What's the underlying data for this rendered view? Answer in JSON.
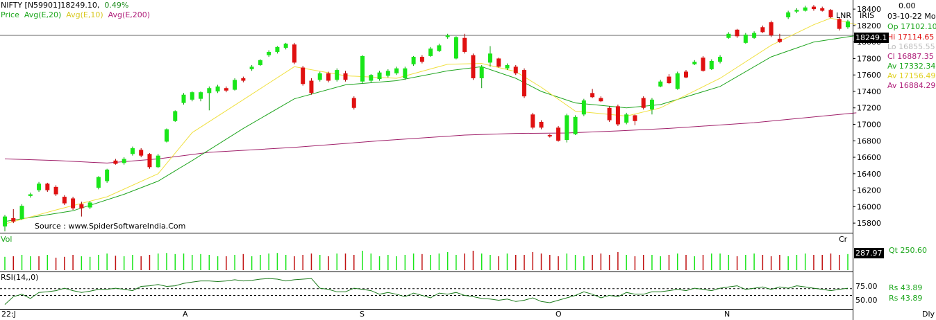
{
  "header": {
    "symbol": "NIFTY [N59901]",
    "last": "18249.10,",
    "change_pct": "0.49%",
    "legend_price": "Price",
    "legend_avg20": "Avg(E,20)",
    "legend_avg10": "Avg(E,10)",
    "legend_avg200": "Avg(E,200)",
    "source": "Source : www.SpiderSoftwareIndia.Com",
    "lnr": "LNR",
    "iris": "IRIS"
  },
  "info_panel": {
    "zero": "0.00",
    "date": "03-10-22 Mo",
    "op": "Op 17102.10",
    "hi": "Hi  17114.65",
    "lo": "Lo  16855.55",
    "cl": "Cl  16887.35",
    "av1": "Av  17332.34",
    "av2": "Av  17156.49",
    "av3": "Av  16884.29",
    "price_box": "18249.1"
  },
  "volume_panel": {
    "label": "Vol",
    "cr": "Cr",
    "value_box": "287.97",
    "qt": "Qt     250.60"
  },
  "rsi_panel": {
    "label": "RSI(14,,0)",
    "tick_75": "75.00",
    "tick_50": "50.00",
    "rs1": "Rs       43.89",
    "rs2": "Rs       43.89"
  },
  "colors": {
    "up": "#19e619",
    "down": "#e01010",
    "avg20": "#1fa51f",
    "avg10": "#f0e040",
    "avg200": "#a0206a",
    "hline": "#a0a0a0",
    "rsi": "#1a7a1a"
  },
  "chart_data": {
    "type": "candlestick",
    "y_ticks": [
      15800,
      16000,
      16200,
      16400,
      16600,
      16800,
      17000,
      17200,
      17400,
      17600,
      17800,
      18000,
      18200,
      18400
    ],
    "ylim": [
      15700,
      18460
    ],
    "x_month_labels": [
      "22:J",
      "A",
      "S",
      "O",
      "N",
      "Dly"
    ],
    "horizontal_line": 18080,
    "candles": [
      {
        "o": 15760,
        "c": 15880,
        "h": 15900,
        "l": 15700
      },
      {
        "o": 15860,
        "c": 15820,
        "h": 15970,
        "l": 15800
      },
      {
        "o": 15850,
        "c": 16010,
        "h": 16030,
        "l": 15840
      },
      {
        "o": 16130,
        "c": 16150,
        "h": 16170,
        "l": 16110
      },
      {
        "o": 16200,
        "c": 16280,
        "h": 16300,
        "l": 16180
      },
      {
        "o": 16280,
        "c": 16200,
        "h": 16290,
        "l": 16180
      },
      {
        "o": 16240,
        "c": 16150,
        "h": 16260,
        "l": 16130
      },
      {
        "o": 16120,
        "c": 16040,
        "h": 16140,
        "l": 16020
      },
      {
        "o": 16100,
        "c": 15980,
        "h": 16120,
        "l": 15960
      },
      {
        "o": 16030,
        "c": 15980,
        "h": 16060,
        "l": 15880
      },
      {
        "o": 15990,
        "c": 16050,
        "h": 16070,
        "l": 15970
      },
      {
        "o": 16230,
        "c": 16360,
        "h": 16370,
        "l": 16210
      },
      {
        "o": 16310,
        "c": 16450,
        "h": 16460,
        "l": 16290
      },
      {
        "o": 16560,
        "c": 16520,
        "h": 16580,
        "l": 16510
      },
      {
        "o": 16530,
        "c": 16580,
        "h": 16600,
        "l": 16510
      },
      {
        "o": 16640,
        "c": 16710,
        "h": 16730,
        "l": 16620
      },
      {
        "o": 16690,
        "c": 16620,
        "h": 16710,
        "l": 16600
      },
      {
        "o": 16640,
        "c": 16480,
        "h": 16650,
        "l": 16460
      },
      {
        "o": 16480,
        "c": 16620,
        "h": 16640,
        "l": 16470
      },
      {
        "o": 16790,
        "c": 16940,
        "h": 16950,
        "l": 16780
      },
      {
        "o": 17040,
        "c": 17160,
        "h": 17170,
        "l": 17030
      },
      {
        "o": 17260,
        "c": 17360,
        "h": 17380,
        "l": 17240
      },
      {
        "o": 17300,
        "c": 17390,
        "h": 17400,
        "l": 17280
      },
      {
        "o": 17310,
        "c": 17390,
        "h": 17400,
        "l": 17280
      },
      {
        "o": 17380,
        "c": 17440,
        "h": 17460,
        "l": 17170
      },
      {
        "o": 17400,
        "c": 17460,
        "h": 17480,
        "l": 17380
      },
      {
        "o": 17440,
        "c": 17410,
        "h": 17460,
        "l": 17390
      },
      {
        "o": 17420,
        "c": 17540,
        "h": 17560,
        "l": 17410
      },
      {
        "o": 17560,
        "c": 17530,
        "h": 17580,
        "l": 17510
      },
      {
        "o": 17670,
        "c": 17700,
        "h": 17720,
        "l": 17650
      },
      {
        "o": 17720,
        "c": 17780,
        "h": 17790,
        "l": 17710
      },
      {
        "o": 17840,
        "c": 17880,
        "h": 17900,
        "l": 17820
      },
      {
        "o": 17880,
        "c": 17940,
        "h": 17950,
        "l": 17860
      },
      {
        "o": 17930,
        "c": 17980,
        "h": 17990,
        "l": 17910
      },
      {
        "o": 17970,
        "c": 17750,
        "h": 17990,
        "l": 17730
      },
      {
        "o": 17690,
        "c": 17490,
        "h": 17710,
        "l": 17470
      },
      {
        "o": 17530,
        "c": 17380,
        "h": 17560,
        "l": 17360
      },
      {
        "o": 17540,
        "c": 17620,
        "h": 17640,
        "l": 17520
      },
      {
        "o": 17620,
        "c": 17530,
        "h": 17640,
        "l": 17510
      },
      {
        "o": 17540,
        "c": 17660,
        "h": 17680,
        "l": 17520
      },
      {
        "o": 17620,
        "c": 17540,
        "h": 17650,
        "l": 17520
      },
      {
        "o": 17320,
        "c": 17200,
        "h": 17340,
        "l": 17180
      },
      {
        "o": 17520,
        "c": 17830,
        "h": 17840,
        "l": 17500
      },
      {
        "o": 17530,
        "c": 17600,
        "h": 17610,
        "l": 17510
      },
      {
        "o": 17550,
        "c": 17630,
        "h": 17650,
        "l": 17530
      },
      {
        "o": 17590,
        "c": 17650,
        "h": 17670,
        "l": 17570
      },
      {
        "o": 17620,
        "c": 17680,
        "h": 17700,
        "l": 17600
      },
      {
        "o": 17560,
        "c": 17680,
        "h": 17700,
        "l": 17540
      },
      {
        "o": 17730,
        "c": 17820,
        "h": 17830,
        "l": 17710
      },
      {
        "o": 17820,
        "c": 17760,
        "h": 17840,
        "l": 17740
      },
      {
        "o": 17830,
        "c": 17920,
        "h": 17940,
        "l": 17820
      },
      {
        "o": 17890,
        "c": 17960,
        "h": 17980,
        "l": 17880
      },
      {
        "o": 18060,
        "c": 18080,
        "h": 18100,
        "l": 18040
      },
      {
        "o": 17800,
        "c": 18060,
        "h": 18070,
        "l": 17790
      },
      {
        "o": 18050,
        "c": 17880,
        "h": 18100,
        "l": 17860
      },
      {
        "o": 17840,
        "c": 17560,
        "h": 17860,
        "l": 17540
      },
      {
        "o": 17560,
        "c": 17700,
        "h": 17720,
        "l": 17440
      },
      {
        "o": 17750,
        "c": 17860,
        "h": 17950,
        "l": 17700
      },
      {
        "o": 17800,
        "c": 17700,
        "h": 17810,
        "l": 17690
      },
      {
        "o": 17680,
        "c": 17720,
        "h": 17740,
        "l": 17660
      },
      {
        "o": 17700,
        "c": 17620,
        "h": 17720,
        "l": 17600
      },
      {
        "o": 17660,
        "c": 17340,
        "h": 17680,
        "l": 17320
      },
      {
        "o": 17120,
        "c": 16960,
        "h": 17140,
        "l": 16940
      },
      {
        "o": 17030,
        "c": 16960,
        "h": 17050,
        "l": 16940
      },
      {
        "o": 16870,
        "c": 16860,
        "h": 16880,
        "l": 16840
      },
      {
        "o": 16960,
        "c": 16800,
        "h": 16980,
        "l": 16790
      },
      {
        "o": 16810,
        "c": 17110,
        "h": 17130,
        "l": 16780
      },
      {
        "o": 16880,
        "c": 17090,
        "h": 17110,
        "l": 16870
      },
      {
        "o": 17120,
        "c": 17290,
        "h": 17310,
        "l": 17100
      },
      {
        "o": 17380,
        "c": 17330,
        "h": 17430,
        "l": 17320
      },
      {
        "o": 17320,
        "c": 17280,
        "h": 17340,
        "l": 17270
      },
      {
        "o": 17200,
        "c": 17050,
        "h": 17220,
        "l": 17030
      },
      {
        "o": 17220,
        "c": 17000,
        "h": 17240,
        "l": 16980
      },
      {
        "o": 17020,
        "c": 17120,
        "h": 17140,
        "l": 17000
      },
      {
        "o": 17110,
        "c": 17040,
        "h": 17120,
        "l": 16990
      },
      {
        "o": 17320,
        "c": 17200,
        "h": 17340,
        "l": 17180
      },
      {
        "o": 17180,
        "c": 17300,
        "h": 17320,
        "l": 17120
      },
      {
        "o": 17460,
        "c": 17520,
        "h": 17540,
        "l": 17450
      },
      {
        "o": 17580,
        "c": 17500,
        "h": 17610,
        "l": 17490
      },
      {
        "o": 17430,
        "c": 17620,
        "h": 17640,
        "l": 17420
      },
      {
        "o": 17640,
        "c": 17570,
        "h": 17660,
        "l": 17560
      },
      {
        "o": 17730,
        "c": 17760,
        "h": 17780,
        "l": 17720
      },
      {
        "o": 17810,
        "c": 17650,
        "h": 17830,
        "l": 17640
      },
      {
        "o": 17670,
        "c": 17770,
        "h": 17790,
        "l": 17660
      },
      {
        "o": 17760,
        "c": 17820,
        "h": 17840,
        "l": 17740
      },
      {
        "o": 18050,
        "c": 18100,
        "h": 18120,
        "l": 18040
      },
      {
        "o": 18150,
        "c": 18070,
        "h": 18160,
        "l": 18050
      },
      {
        "o": 17990,
        "c": 18090,
        "h": 18110,
        "l": 17980
      },
      {
        "o": 18050,
        "c": 18110,
        "h": 18130,
        "l": 18040
      },
      {
        "o": 18180,
        "c": 18120,
        "h": 18200,
        "l": 18110
      },
      {
        "o": 18240,
        "c": 18080,
        "h": 18260,
        "l": 18060
      },
      {
        "o": 18040,
        "c": 18000,
        "h": 18100,
        "l": 17990
      },
      {
        "o": 18300,
        "c": 18360,
        "h": 18380,
        "l": 18280
      },
      {
        "o": 18370,
        "c": 18390,
        "h": 18410,
        "l": 18350
      },
      {
        "o": 18380,
        "c": 18420,
        "h": 18440,
        "l": 18370
      },
      {
        "o": 18430,
        "c": 18400,
        "h": 18450,
        "l": 18380
      },
      {
        "o": 18410,
        "c": 18380,
        "h": 18430,
        "l": 18370
      },
      {
        "o": 18390,
        "c": 18300,
        "h": 18400,
        "l": 18290
      },
      {
        "o": 18280,
        "c": 18160,
        "h": 18300,
        "l": 18140
      },
      {
        "o": 18180,
        "c": 18250,
        "h": 18270,
        "l": 18160
      }
    ],
    "avg10": [
      [
        0,
        15790
      ],
      [
        6,
        15960
      ],
      [
        12,
        16120
      ],
      [
        18,
        16400
      ],
      [
        22,
        16900
      ],
      [
        28,
        17300
      ],
      [
        34,
        17700
      ],
      [
        40,
        17590
      ],
      [
        46,
        17560
      ],
      [
        52,
        17730
      ],
      [
        56,
        17740
      ],
      [
        60,
        17640
      ],
      [
        63,
        17450
      ],
      [
        67,
        17160
      ],
      [
        73,
        17100
      ],
      [
        77,
        17200
      ],
      [
        84,
        17560
      ],
      [
        90,
        17960
      ],
      [
        95,
        18210
      ],
      [
        97,
        18290
      ],
      [
        100,
        18210
      ]
    ],
    "avg20": [
      [
        0,
        15820
      ],
      [
        8,
        15950
      ],
      [
        14,
        16150
      ],
      [
        18,
        16310
      ],
      [
        22,
        16560
      ],
      [
        28,
        16950
      ],
      [
        34,
        17310
      ],
      [
        40,
        17480
      ],
      [
        46,
        17530
      ],
      [
        52,
        17650
      ],
      [
        56,
        17700
      ],
      [
        60,
        17560
      ],
      [
        63,
        17400
      ],
      [
        67,
        17260
      ],
      [
        73,
        17200
      ],
      [
        77,
        17240
      ],
      [
        84,
        17460
      ],
      [
        90,
        17820
      ],
      [
        95,
        18000
      ],
      [
        100,
        18080
      ]
    ],
    "avg200": [
      [
        0,
        16580
      ],
      [
        6,
        16560
      ],
      [
        12,
        16530
      ],
      [
        18,
        16580
      ],
      [
        24,
        16660
      ],
      [
        34,
        16720
      ],
      [
        44,
        16800
      ],
      [
        54,
        16870
      ],
      [
        60,
        16890
      ],
      [
        66,
        16895
      ],
      [
        72,
        16920
      ],
      [
        78,
        16950
      ],
      [
        88,
        17020
      ],
      [
        96,
        17100
      ],
      [
        100,
        17140
      ]
    ],
    "volume_up_pattern": [
      1,
      0,
      1,
      1,
      0,
      1,
      0,
      0,
      0,
      1,
      1,
      1,
      1,
      0,
      1,
      1,
      0,
      0,
      1,
      1,
      1,
      1,
      1,
      1,
      1,
      1,
      0,
      1,
      0,
      1,
      1,
      1,
      1,
      1,
      0,
      0,
      0,
      1,
      0,
      1,
      0,
      0,
      1,
      1,
      1,
      1,
      1,
      1,
      1,
      0,
      1,
      1,
      1,
      1,
      0,
      0,
      1,
      1,
      0,
      1,
      0,
      0,
      0,
      0,
      0,
      0,
      1,
      1,
      1,
      0,
      0,
      0,
      0,
      1,
      0,
      0,
      1,
      1,
      0,
      1,
      0,
      1,
      0,
      1,
      1,
      1,
      0,
      1,
      1,
      0,
      0,
      0,
      1,
      1,
      1,
      0,
      0,
      0,
      0,
      1
    ],
    "volume_heights": [
      0.48,
      0.5,
      0.55,
      0.5,
      0.5,
      0.55,
      0.45,
      0.48,
      0.55,
      0.5,
      0.48,
      0.55,
      0.6,
      0.52,
      0.5,
      0.55,
      0.5,
      0.55,
      0.6,
      0.62,
      0.58,
      0.6,
      0.55,
      0.58,
      0.55,
      0.5,
      0.5,
      0.55,
      0.58,
      0.5,
      0.55,
      0.6,
      0.62,
      0.55,
      0.5,
      0.55,
      0.6,
      0.55,
      0.5,
      0.6,
      0.6,
      0.55,
      0.7,
      0.6,
      0.5,
      0.55,
      0.5,
      0.55,
      0.6,
      0.58,
      0.55,
      0.6,
      0.65,
      0.55,
      0.6,
      0.7,
      0.6,
      0.55,
      0.5,
      0.6,
      0.55,
      0.55,
      0.65,
      0.6,
      0.55,
      0.5,
      0.6,
      0.55,
      0.5,
      0.55,
      0.6,
      0.55,
      0.65,
      0.55,
      0.5,
      0.55,
      0.55,
      0.5,
      0.55,
      0.6,
      0.55,
      0.5,
      0.55,
      0.6,
      0.6,
      0.55,
      0.5,
      0.55,
      0.6,
      0.55,
      0.5,
      0.55,
      0.5,
      0.55,
      0.6,
      0.55,
      0.55,
      0.6,
      0.55,
      0.58
    ],
    "rsi_values": [
      35,
      48,
      52,
      45,
      55,
      56,
      58,
      62,
      58,
      55,
      57,
      60,
      60,
      62,
      60,
      58,
      65,
      66,
      68,
      65,
      66,
      70,
      72,
      74,
      74,
      73,
      74,
      76,
      74,
      75,
      77,
      78,
      77,
      74,
      76,
      77,
      78,
      62,
      60,
      56,
      56,
      62,
      60,
      58,
      52,
      55,
      52,
      48,
      54,
      50,
      46,
      54,
      52,
      55,
      50,
      48,
      45,
      44,
      42,
      44,
      40,
      42,
      46,
      40,
      38,
      42,
      46,
      50,
      56,
      52,
      46,
      50,
      48,
      55,
      52,
      52,
      56,
      56,
      58,
      60,
      58,
      62,
      60,
      58,
      62,
      64,
      66,
      60,
      62,
      64,
      60,
      64,
      62,
      66,
      64,
      62,
      60,
      58,
      60,
      62
    ]
  }
}
